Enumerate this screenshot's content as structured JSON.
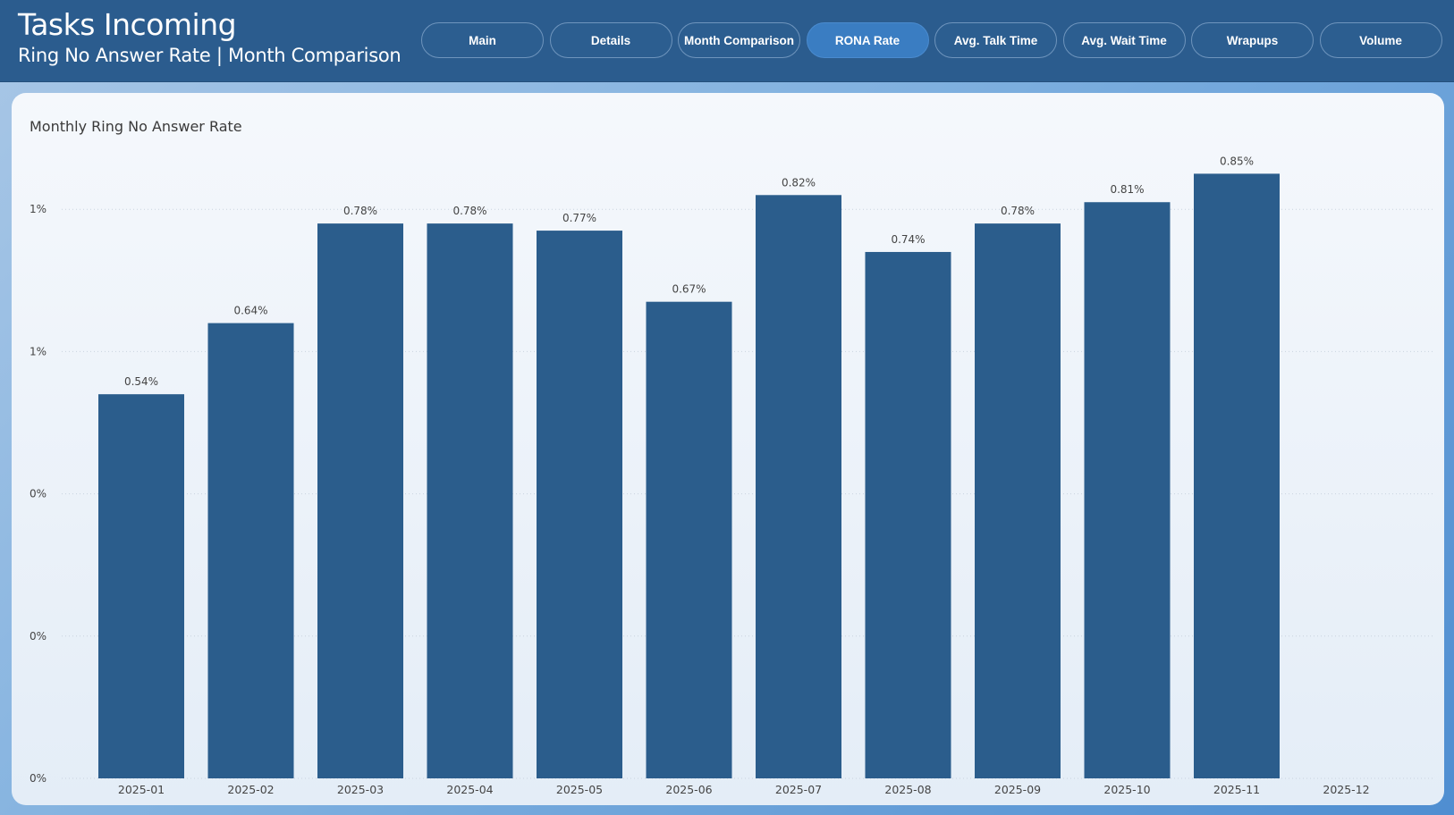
{
  "header": {
    "title": "Tasks Incoming",
    "subtitle": "Ring No Answer Rate | Month Comparison"
  },
  "nav": [
    {
      "label": "Main",
      "active": false
    },
    {
      "label": "Details",
      "active": false
    },
    {
      "label": "Month Comparison",
      "active": false
    },
    {
      "label": "RONA Rate",
      "active": true
    },
    {
      "label": "Avg. Talk Time",
      "active": false
    },
    {
      "label": "Avg. Wait Time",
      "active": false
    },
    {
      "label": "Wrapups",
      "active": false
    },
    {
      "label": "Volume",
      "active": false
    }
  ],
  "colors": {
    "bar": "#2b5d8c",
    "header": "#2b5c8e",
    "active_tab": "#3a7dc2"
  },
  "chart_data": {
    "type": "bar",
    "title": "Monthly Ring No Answer Rate",
    "categories": [
      "2025-01",
      "2025-02",
      "2025-03",
      "2025-04",
      "2025-05",
      "2025-06",
      "2025-07",
      "2025-08",
      "2025-09",
      "2025-10",
      "2025-11",
      "2025-12"
    ],
    "values": [
      0.54,
      0.64,
      0.78,
      0.78,
      0.77,
      0.67,
      0.82,
      0.74,
      0.78,
      0.81,
      0.85,
      null
    ],
    "data_labels": [
      "0.54%",
      "0.64%",
      "0.78%",
      "0.78%",
      "0.77%",
      "0.67%",
      "0.82%",
      "0.74%",
      "0.78%",
      "0.81%",
      "0.85%",
      ""
    ],
    "y_ticks": [
      {
        "value": 0.0,
        "label": "0%"
      },
      {
        "value": 0.2,
        "label": "0%"
      },
      {
        "value": 0.4,
        "label": "0%"
      },
      {
        "value": 0.6,
        "label": "1%"
      },
      {
        "value": 0.8,
        "label": "1%"
      }
    ],
    "ylim": [
      0,
      0.85
    ],
    "grid": true,
    "xlabel": "",
    "ylabel": ""
  }
}
